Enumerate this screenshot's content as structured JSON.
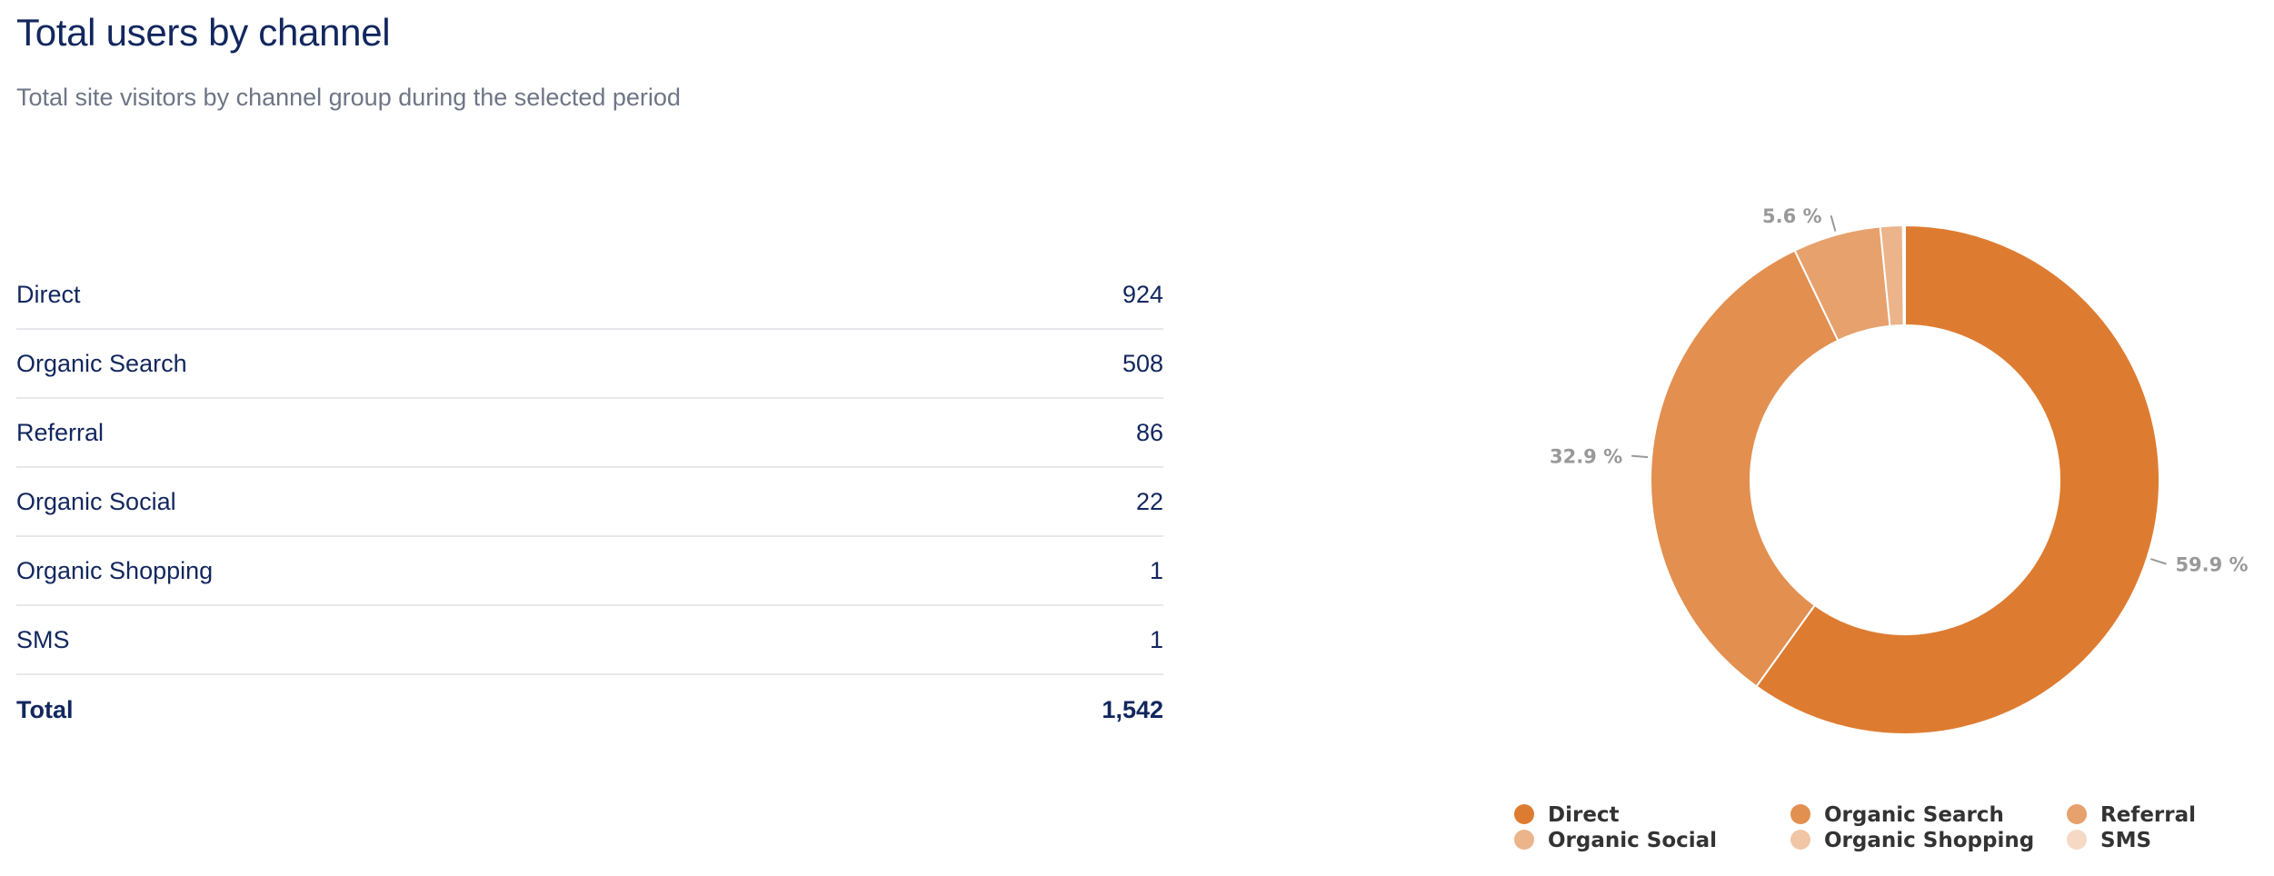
{
  "header": {
    "title": "Total users by channel",
    "subtitle": "Total site visitors by channel group during the selected period"
  },
  "table": {
    "rows": [
      {
        "label": "Direct",
        "value": "924"
      },
      {
        "label": "Organic Search",
        "value": "508"
      },
      {
        "label": "Referral",
        "value": "86"
      },
      {
        "label": "Organic Social",
        "value": "22"
      },
      {
        "label": "Organic Shopping",
        "value": "1"
      },
      {
        "label": "SMS",
        "value": "1"
      }
    ],
    "total": {
      "label": "Total",
      "value": "1,542"
    }
  },
  "chart_data": {
    "type": "pie",
    "donut": true,
    "categories": [
      "Direct",
      "Organic Search",
      "Referral",
      "Organic Social",
      "Organic Shopping",
      "SMS"
    ],
    "values": [
      924,
      508,
      86,
      22,
      1,
      1
    ],
    "colors": [
      "#dd7c31",
      "#e28f50",
      "#e7a16d",
      "#ebb48a",
      "#f0c6a7",
      "#f5d9c4"
    ],
    "data_labels": [
      "59.9 %",
      "32.9 %",
      "5.6 %",
      "",
      "",
      ""
    ],
    "legend_position": "bottom"
  }
}
